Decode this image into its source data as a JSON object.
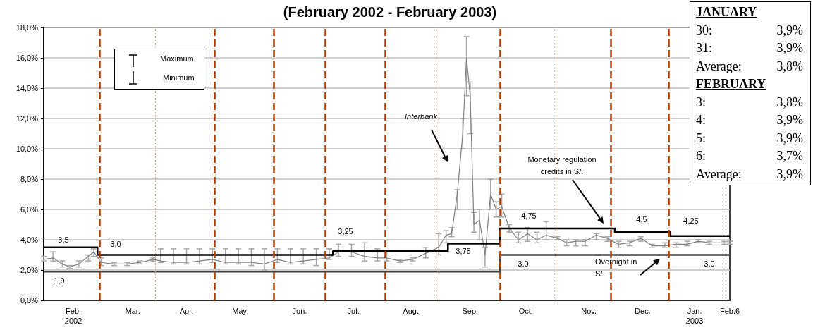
{
  "chart_data": {
    "type": "line",
    "title": "(February 2002 - February 2003)",
    "xlim": [
      "2002-02-01",
      "2003-02-06"
    ],
    "xticks": [
      {
        "value": "2002-02-17",
        "label": "Feb.\n2002"
      },
      {
        "value": "2002-03-21",
        "label": "Mar."
      },
      {
        "value": "2002-04-19",
        "label": "Apr."
      },
      {
        "value": "2002-05-18",
        "label": "May."
      },
      {
        "value": "2002-06-19",
        "label": "Jun."
      },
      {
        "value": "2002-07-18",
        "label": "Jul."
      },
      {
        "value": "2002-08-18",
        "label": "Aug."
      },
      {
        "value": "2002-09-19",
        "label": "Sep."
      },
      {
        "value": "2002-10-19",
        "label": "Oct."
      },
      {
        "value": "2002-11-22",
        "label": "Nov."
      },
      {
        "value": "2002-12-21",
        "label": "Dec."
      },
      {
        "value": "2003-01-18",
        "label": "Jan.\n2003"
      },
      {
        "value": "2003-02-06",
        "label": "Feb.6"
      }
    ],
    "ylim": [
      0,
      18
    ],
    "yticks": [
      {
        "value": 0,
        "label": "0,0%"
      },
      {
        "value": 2,
        "label": "2,0%"
      },
      {
        "value": 4,
        "label": "4,0%"
      },
      {
        "value": 6,
        "label": "6,0%"
      },
      {
        "value": 8,
        "label": "8,0%"
      },
      {
        "value": 10,
        "label": "10,0%"
      },
      {
        "value": 12,
        "label": "12,0%"
      },
      {
        "value": 14,
        "label": "14,0%"
      },
      {
        "value": 16,
        "label": "16,0%"
      },
      {
        "value": 18,
        "label": "18,0%"
      }
    ],
    "grid": "y",
    "marker": "none",
    "series": [
      {
        "color": "#808080",
        "x": [
          "2002-02-01",
          "2002-02-06",
          "2002-02-11",
          "2002-02-15",
          "2002-02-20",
          "2002-02-25",
          "2002-02-28",
          "2002-03-04",
          "2002-03-11",
          "2002-03-18",
          "2002-03-25",
          "2002-04-01",
          "2002-04-05",
          "2002-04-12",
          "2002-04-19",
          "2002-04-26",
          "2002-05-03",
          "2002-05-10",
          "2002-05-17",
          "2002-05-24",
          "2002-05-31",
          "2002-06-07",
          "2002-06-14",
          "2002-06-21",
          "2002-06-28",
          "2002-07-05",
          "2002-07-10",
          "2002-07-17",
          "2002-07-24",
          "2002-07-31",
          "2002-08-05",
          "2002-08-12",
          "2002-08-19",
          "2002-08-26",
          "2002-09-02",
          "2002-09-06",
          "2002-09-09",
          "2002-09-12",
          "2002-09-15",
          "2002-09-17",
          "2002-09-19",
          "2002-09-21",
          "2002-09-24",
          "2002-09-27",
          "2002-09-30",
          "2002-10-03",
          "2002-10-06",
          "2002-10-10",
          "2002-10-15",
          "2002-10-20",
          "2002-10-25",
          "2002-10-30",
          "2002-11-05",
          "2002-11-10",
          "2002-11-15",
          "2002-11-20",
          "2002-11-26",
          "2002-12-02",
          "2002-12-08",
          "2002-12-14",
          "2002-12-20",
          "2002-12-26",
          "2003-01-02",
          "2003-01-08",
          "2003-01-14",
          "2003-01-20",
          "2003-01-26",
          "2003-02-03",
          "2003-02-06"
        ],
        "values": [
          2.7,
          2.8,
          2.4,
          2.2,
          2.4,
          2.9,
          3.2,
          2.5,
          2.4,
          2.4,
          2.5,
          2.7,
          2.6,
          2.5,
          2.5,
          2.6,
          2.7,
          2.5,
          2.5,
          2.5,
          2.4,
          2.7,
          2.5,
          2.6,
          2.7,
          2.8,
          3.2,
          3.2,
          2.9,
          2.8,
          2.8,
          2.6,
          2.7,
          3.1,
          3.5,
          4.3,
          4.4,
          7.0,
          11.0,
          16.0,
          13.5,
          5.0,
          5.3,
          3.0,
          7.0,
          6.0,
          6.2,
          4.8,
          4.0,
          4.4,
          4.0,
          4.3,
          4.1,
          3.8,
          3.9,
          3.9,
          4.3,
          4.1,
          3.7,
          3.8,
          4.1,
          3.6,
          3.6,
          3.7,
          3.7,
          3.9,
          3.8,
          3.8,
          3.8
        ],
        "errors": [
          [
            2.6,
            2.9
          ],
          [
            2.6,
            3.2
          ],
          [
            2.2,
            2.6
          ],
          [
            2.1,
            2.3
          ],
          [
            2.2,
            2.6
          ],
          [
            2.6,
            3.0
          ],
          [
            2.9,
            3.4
          ],
          [
            2.3,
            2.8
          ],
          [
            2.3,
            2.5
          ],
          [
            2.3,
            2.5
          ],
          [
            2.4,
            2.6
          ],
          [
            2.6,
            2.8
          ],
          [
            2.5,
            3.4
          ],
          [
            2.4,
            3.4
          ],
          [
            2.4,
            3.4
          ],
          [
            2.4,
            3.4
          ],
          [
            2.5,
            3.4
          ],
          [
            2.4,
            3.4
          ],
          [
            2.4,
            3.4
          ],
          [
            2.3,
            3.4
          ],
          [
            2.0,
            3.4
          ],
          [
            2.5,
            3.4
          ],
          [
            2.4,
            3.4
          ],
          [
            2.4,
            3.4
          ],
          [
            2.3,
            3.4
          ],
          [
            2.7,
            3.4
          ],
          [
            2.9,
            3.7
          ],
          [
            2.9,
            3.7
          ],
          [
            2.6,
            3.8
          ],
          [
            2.6,
            3.4
          ],
          [
            2.6,
            3.3
          ],
          [
            2.5,
            2.7
          ],
          [
            2.6,
            2.8
          ],
          [
            2.8,
            3.5
          ],
          [
            3.0,
            4.4
          ],
          [
            3.8,
            4.6
          ],
          [
            4.2,
            4.8
          ],
          [
            6.0,
            7.3
          ],
          [
            10.0,
            12.0
          ],
          [
            13.5,
            17.4
          ],
          [
            11.0,
            14.4
          ],
          [
            4.5,
            5.8
          ],
          [
            4.0,
            6.0
          ],
          [
            2.2,
            3.5
          ],
          [
            6.0,
            8.0
          ],
          [
            5.5,
            6.5
          ],
          [
            5.5,
            7.0
          ],
          [
            4.5,
            5.0
          ],
          [
            3.8,
            4.5
          ],
          [
            3.9,
            4.8
          ],
          [
            3.8,
            4.5
          ],
          [
            4.0,
            5.2
          ],
          [
            4.0,
            4.2
          ],
          [
            3.6,
            4.0
          ],
          [
            3.6,
            4.0
          ],
          [
            3.6,
            4.0
          ],
          [
            4.0,
            4.4
          ],
          [
            3.9,
            4.2
          ],
          [
            3.5,
            3.9
          ],
          [
            3.6,
            3.9
          ],
          [
            3.9,
            4.2
          ],
          [
            3.5,
            3.7
          ],
          [
            3.5,
            3.8
          ],
          [
            3.5,
            3.8
          ],
          [
            3.6,
            3.9
          ],
          [
            3.8,
            4.0
          ],
          [
            3.7,
            3.9
          ],
          [
            3.7,
            3.9
          ],
          [
            3.7,
            3.9
          ]
        ]
      },
      {
        "type": "step",
        "color": "#000000",
        "x": [
          "2002-02-01",
          "2002-03-02",
          "2002-07-07",
          "2002-09-07",
          "2002-10-05",
          "2002-12-06",
          "2003-01-05",
          "2003-02-06"
        ],
        "values": [
          3.5,
          3.0,
          3.25,
          3.75,
          4.75,
          4.5,
          4.25,
          4.25
        ]
      },
      {
        "type": "step",
        "color": "#404040",
        "x": [
          "2002-02-01",
          "2002-10-05",
          "2003-02-06"
        ],
        "values": [
          1.9,
          3.0,
          3.0
        ]
      }
    ],
    "ref_lines": [
      {
        "axis": "x",
        "value": "2002-03-03",
        "color": "#b03a00",
        "line_style": "dashed"
      },
      {
        "axis": "x",
        "value": "2002-04-02",
        "color": "#e8a080",
        "line_style": "dotted"
      },
      {
        "axis": "x",
        "value": "2002-05-04",
        "color": "#b03a00",
        "line_style": "dashed"
      },
      {
        "axis": "x",
        "value": "2002-06-05",
        "color": "#b03a00",
        "line_style": "dashed"
      },
      {
        "axis": "x",
        "value": "2002-07-03",
        "color": "#b03a00",
        "line_style": "dashed"
      },
      {
        "axis": "x",
        "value": "2002-08-04",
        "color": "#b03a00",
        "line_style": "dashed"
      },
      {
        "axis": "x",
        "value": "2002-09-02",
        "color": "#e8a080",
        "line_style": "dotted"
      },
      {
        "axis": "x",
        "value": "2002-10-05",
        "color": "#b03a00",
        "line_style": "dashed"
      },
      {
        "axis": "x",
        "value": "2002-11-04",
        "color": "#e8a080",
        "line_style": "dotted"
      },
      {
        "axis": "x",
        "value": "2002-12-04",
        "color": "#b03a00",
        "line_style": "dashed"
      },
      {
        "axis": "x",
        "value": "2003-01-04",
        "color": "#b03a00",
        "line_style": "dashed"
      },
      {
        "axis": "x",
        "value": "2003-02-04",
        "color": "#e8a080",
        "line_style": "dotted"
      }
    ],
    "annotations": [
      "Interbank",
      "Monetary regulation credits in S/.",
      "Overnight in S/.",
      "3,5",
      "3,0",
      "1,9",
      "3,25",
      "3,75",
      "4,75",
      "3,0",
      "4,5",
      "4,25",
      "3,0",
      "Maximum",
      "Minimum",
      "JANUARY",
      "30: 3,9%",
      "31: 3,9%",
      "Average: 3,8%",
      "FEBRUARY",
      "3: 3,8%",
      "4: 3,9%",
      "5: 3,9%",
      "6: 3,7%",
      "Average: 3,9%"
    ]
  }
}
